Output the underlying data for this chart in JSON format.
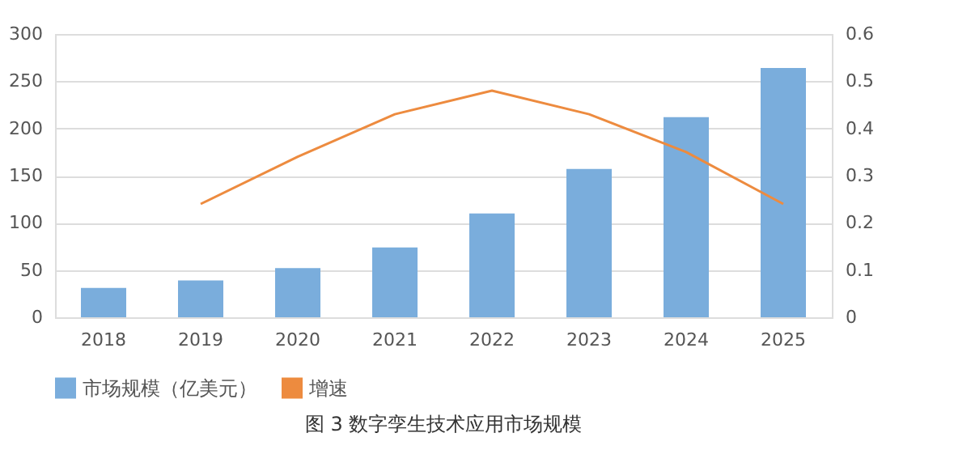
{
  "chart_data": {
    "type": "bar",
    "title": "图 3 数字孪生技术应用市场规模",
    "categories": [
      "2018",
      "2019",
      "2020",
      "2021",
      "2022",
      "2023",
      "2024",
      "2025"
    ],
    "series": [
      {
        "name": "市场规模（亿美元）",
        "color": "#7aaddc",
        "values": [
          31,
          39,
          52,
          74,
          110,
          157,
          212,
          264
        ]
      },
      {
        "name": "增速",
        "type": "line",
        "axis": "y2",
        "color": "#ed8b3f",
        "values": [
          null,
          0.24,
          0.34,
          0.43,
          0.48,
          0.43,
          0.35,
          0.24
        ]
      }
    ],
    "ylim": [
      0,
      300
    ],
    "yticks": [
      0,
      50,
      100,
      150,
      200,
      250,
      300
    ],
    "y2lim": [
      0,
      0.6
    ],
    "y2ticks": [
      0,
      0.1,
      0.2,
      0.3,
      0.4,
      0.5,
      0.6
    ],
    "grid": "y",
    "legend": "bottom",
    "marker": "none",
    "line_style": "solid"
  }
}
